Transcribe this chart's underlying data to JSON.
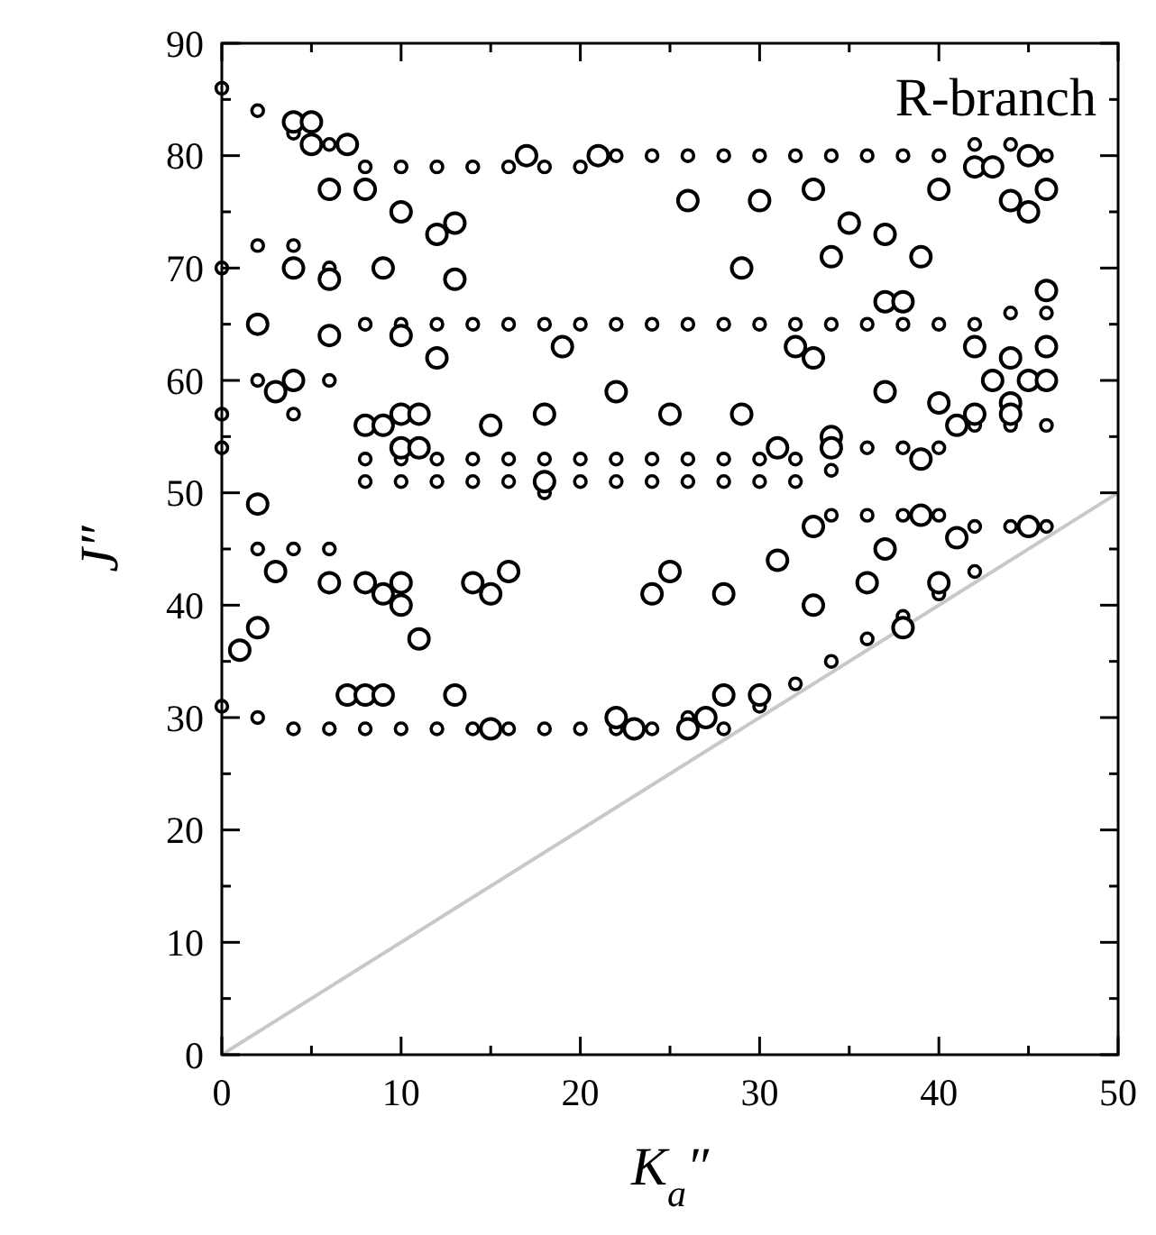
{
  "chart_data": {
    "type": "scatter",
    "xlabel": "K$_{a}$″",
    "ylabel": "J″",
    "annotations": [
      "R-branch"
    ],
    "xlim": [
      0,
      50
    ],
    "ylim": [
      0,
      90
    ],
    "xticks": [
      0,
      {
        "value": 5,
        "label": null
      },
      10,
      {
        "value": 15,
        "label": null
      },
      20,
      {
        "value": 25,
        "label": null
      },
      30,
      {
        "value": 35,
        "label": null
      },
      40,
      {
        "value": 45,
        "label": null
      },
      50
    ],
    "yticks": [
      0,
      {
        "value": 5,
        "label": null
      },
      10,
      {
        "value": 15,
        "label": null
      },
      20,
      {
        "value": 25,
        "label": null
      },
      30,
      {
        "value": 35,
        "label": null
      },
      40,
      {
        "value": 45,
        "label": null
      },
      50,
      {
        "value": 55,
        "label": null
      },
      60,
      {
        "value": 65,
        "label": null
      },
      70,
      {
        "value": 75,
        "label": null
      },
      80,
      {
        "value": 85,
        "label": null
      },
      90
    ],
    "grid": false,
    "marker": "circle",
    "series": [
      {
        "type": "line",
        "color": "#c8c8c8",
        "marker": "none",
        "x": [
          0,
          50
        ],
        "values": [
          0,
          50
        ]
      },
      {
        "type": "scatter",
        "color": "#000000",
        "x": [
          0,
          0,
          0,
          0,
          0,
          2,
          2,
          2,
          2,
          2,
          4,
          4,
          4,
          4,
          4,
          6,
          6,
          6,
          6,
          6,
          8,
          8,
          8,
          8,
          8,
          10,
          10,
          10,
          10,
          10,
          12,
          12,
          12,
          12,
          12,
          14,
          14,
          14,
          14,
          14,
          16,
          16,
          16,
          16,
          16,
          18,
          18,
          18,
          18,
          18,
          20,
          20,
          20,
          20,
          20,
          22,
          22,
          22,
          22,
          22,
          24,
          24,
          24,
          24,
          24,
          26,
          26,
          26,
          26,
          26,
          28,
          28,
          28,
          28,
          28,
          30,
          30,
          30,
          30,
          30,
          32,
          32,
          32,
          32,
          32,
          34,
          34,
          34,
          34,
          34,
          36,
          36,
          36,
          36,
          36,
          38,
          38,
          38,
          38,
          38,
          40,
          40,
          40,
          40,
          40,
          42,
          42,
          42,
          42,
          42,
          44,
          44,
          44,
          44,
          46,
          46,
          46,
          46
        ],
        "sizes": [
          0.34,
          0.34,
          0.34,
          0.34,
          0.34,
          0.34,
          0.34,
          0.34,
          0.34,
          0.34,
          0.34,
          0.34,
          0.34,
          0.34,
          0.34,
          0.34,
          0.34,
          0.34,
          0.34,
          0.34,
          0.34,
          0.34,
          0.34,
          0.34,
          0.34,
          0.34,
          0.34,
          0.34,
          0.34,
          0.34,
          0.34,
          0.34,
          0.34,
          0.34,
          0.34,
          0.34,
          0.34,
          0.34,
          0.34,
          0.34,
          0.34,
          0.34,
          0.34,
          0.34,
          0.34,
          0.34,
          0.34,
          0.34,
          0.34,
          0.34,
          0.34,
          0.34,
          0.34,
          0.34,
          0.34,
          0.34,
          0.34,
          0.34,
          0.34,
          0.34,
          0.34,
          0.34,
          0.34,
          0.34,
          0.34,
          0.34,
          0.34,
          0.34,
          0.34,
          0.34,
          0.34,
          0.34,
          0.34,
          0.34,
          0.34,
          0.34,
          0.34,
          0.34,
          0.34,
          0.34,
          0.34,
          0.34,
          0.34,
          0.34,
          0.34,
          0.34,
          0.34,
          0.34,
          0.34,
          0.34,
          0.34,
          0.34,
          0.34,
          0.34,
          0.34,
          0.34,
          0.34,
          0.34,
          0.34,
          0.34,
          0.34,
          0.34,
          0.34,
          0.34,
          0.34,
          0.34,
          0.34,
          0.34,
          0.34,
          0.34,
          0.34,
          0.34,
          0.34,
          0.34,
          0.34,
          0.34,
          0.34,
          0.34
        ],
        "values": [
          86,
          31,
          54,
          57,
          70,
          84,
          30,
          45,
          60,
          72,
          82,
          29,
          45,
          57,
          72,
          81,
          29,
          45,
          60,
          70,
          79,
          29,
          51,
          53,
          65,
          79,
          29,
          51,
          53,
          65,
          79,
          29,
          51,
          53,
          65,
          79,
          29,
          51,
          53,
          65,
          79,
          29,
          51,
          53,
          65,
          79,
          29,
          50,
          53,
          65,
          79,
          29,
          51,
          53,
          65,
          80,
          29,
          51,
          53,
          65,
          80,
          29,
          51,
          53,
          65,
          80,
          30,
          51,
          53,
          65,
          80,
          29,
          51,
          53,
          65,
          80,
          31,
          51,
          53,
          65,
          80,
          33,
          51,
          53,
          65,
          80,
          35,
          48,
          52,
          65,
          80,
          37,
          48,
          54,
          65,
          80,
          39,
          48,
          54,
          65,
          80,
          41,
          48,
          54,
          65,
          81,
          43,
          47,
          56,
          65,
          81,
          47,
          56,
          66,
          80,
          47,
          56,
          66
        ]
      },
      {
        "type": "scatter",
        "color": "#000000",
        "marker": "circle",
        "sizes": [
          1,
          1,
          1,
          1,
          1,
          1,
          1,
          1,
          1,
          1,
          1,
          1,
          1,
          1,
          1,
          1,
          1,
          1,
          1,
          1,
          1,
          1,
          1,
          1,
          1,
          1,
          1,
          1,
          1,
          1,
          1,
          1,
          1,
          1,
          1,
          1,
          1,
          1,
          1,
          1,
          1,
          1,
          1,
          1,
          1,
          1,
          1,
          1,
          1,
          1,
          1,
          1,
          1,
          1,
          1,
          1,
          1,
          1,
          1,
          1,
          1,
          1,
          1,
          1,
          1,
          1,
          1,
          1,
          1,
          1,
          1,
          1,
          1,
          1,
          1,
          1,
          1,
          1,
          1,
          1,
          1,
          1,
          1,
          1,
          1,
          1,
          1,
          1,
          1,
          1,
          1,
          1,
          1,
          1,
          1,
          1,
          1,
          1,
          1,
          1,
          1,
          1,
          1,
          1,
          1,
          1,
          1
        ],
        "x": [
          1,
          2,
          2,
          2,
          3,
          3,
          4,
          4,
          4,
          5,
          5,
          6,
          6,
          6,
          6,
          7,
          7,
          8,
          8,
          8,
          8,
          9,
          9,
          9,
          9,
          10,
          10,
          10,
          10,
          10,
          10,
          11,
          11,
          11,
          12,
          12,
          13,
          13,
          13,
          14,
          15,
          15,
          15,
          16,
          17,
          18,
          18,
          19,
          21,
          22,
          22,
          23,
          24,
          25,
          25,
          26,
          26,
          27,
          28,
          28,
          29,
          29,
          30,
          30,
          31,
          31,
          32,
          33,
          33,
          33,
          33,
          34,
          34,
          34,
          35,
          36,
          37,
          37,
          37,
          37,
          38,
          38,
          39,
          39,
          39,
          40,
          40,
          40,
          41,
          41,
          42,
          42,
          42,
          43,
          43,
          44,
          44,
          44,
          44,
          45,
          45,
          45,
          45,
          46,
          46,
          46,
          46
        ],
        "values": [
          36,
          38,
          49,
          65,
          43,
          59,
          83,
          70,
          60,
          83,
          81,
          77,
          69,
          64,
          42,
          81,
          32,
          77,
          56,
          42,
          32,
          70,
          56,
          41,
          32,
          75,
          64,
          57,
          54,
          42,
          40,
          57,
          54,
          37,
          73,
          62,
          74,
          69,
          32,
          42,
          56,
          41,
          29,
          43,
          80,
          51,
          57,
          63,
          80,
          59,
          30,
          29,
          41,
          57,
          43,
          76,
          29,
          30,
          32,
          41,
          70,
          57,
          76,
          32,
          44,
          54,
          63,
          77,
          62,
          47,
          40,
          55,
          54,
          71,
          74,
          42,
          73,
          67,
          59,
          45,
          67,
          38,
          71,
          53,
          48,
          77,
          58,
          42,
          46,
          56,
          79,
          63,
          57,
          79,
          60,
          76,
          62,
          58,
          57,
          80,
          75,
          47,
          60,
          77,
          68,
          63,
          60
        ]
      }
    ]
  }
}
